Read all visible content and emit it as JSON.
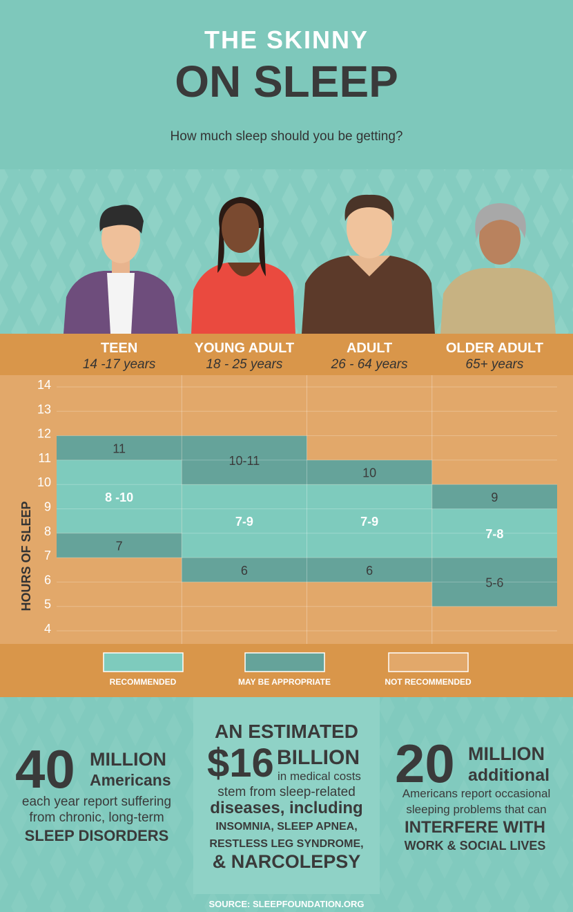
{
  "header": {
    "title_line1": "THE SKINNY",
    "title_line2": "ON SLEEP",
    "subtitle": "How much sleep should you be getting?"
  },
  "chart_data": {
    "type": "range-bands",
    "y_label": "HOURS OF SLEEP",
    "ylim": [
      4,
      14
    ],
    "yticks": [
      4,
      5,
      6,
      7,
      8,
      9,
      10,
      11,
      12,
      13,
      14
    ],
    "grid": true,
    "background_color": "#e2a86a",
    "legend": [
      {
        "name": "RECOMMENDED",
        "color": "#7ecbbd"
      },
      {
        "name": "MAY BE APPROPRIATE",
        "color": "#65a39a"
      },
      {
        "name": "NOT RECOMMENDED",
        "color": "#e2a86a"
      }
    ],
    "categories": [
      {
        "name": "TEEN",
        "ages": "14 -17 years",
        "segments": [
          {
            "label": "11",
            "low": 11,
            "high": 11,
            "color": "#65a39a"
          },
          {
            "label": "8 -10",
            "low": 8,
            "high": 10,
            "color": "#7ecbbd"
          },
          {
            "label": "7",
            "low": 7,
            "high": 7,
            "color": "#65a39a"
          }
        ]
      },
      {
        "name": "YOUNG ADULT",
        "ages": "18 - 25 years",
        "segments": [
          {
            "label": "10-11",
            "low": 10,
            "high": 11,
            "color": "#65a39a"
          },
          {
            "label": "7-9",
            "low": 7,
            "high": 9,
            "color": "#7ecbbd"
          },
          {
            "label": "6",
            "low": 6,
            "high": 6,
            "color": "#65a39a"
          }
        ]
      },
      {
        "name": "ADULT",
        "ages": "26 - 64 years",
        "segments": [
          {
            "label": "10",
            "low": 10,
            "high": 10,
            "color": "#65a39a"
          },
          {
            "label": "7-9",
            "low": 7,
            "high": 9,
            "color": "#7ecbbd"
          },
          {
            "label": "6",
            "low": 6,
            "high": 6,
            "color": "#65a39a"
          }
        ]
      },
      {
        "name": "OLDER ADULT",
        "ages": "65+ years",
        "segments": [
          {
            "label": "9",
            "low": 9,
            "high": 9,
            "color": "#65a39a"
          },
          {
            "label": "7-8",
            "low": 7,
            "high": 8,
            "color": "#7ecbbd"
          },
          {
            "label": "5-6",
            "low": 5,
            "high": 6,
            "color": "#65a39a"
          }
        ]
      }
    ]
  },
  "facts": [
    {
      "number": "40",
      "unit": "MILLION",
      "unit_sub": "Americans",
      "lines": [
        "each year report suffering",
        "from chronic, long-term"
      ],
      "emphasis": [
        "SLEEP DISORDERS"
      ]
    },
    {
      "lead": "AN ESTIMATED",
      "number": "$16",
      "unit": "BILLION",
      "unit_sub": "in medical costs",
      "lines": [
        "stem from sleep-related"
      ],
      "emphasis": [
        "diseases, including",
        "INSOMNIA, SLEEP APNEA,",
        "RESTLESS LEG SYNDROME,",
        "& NARCOLEPSY"
      ]
    },
    {
      "number": "20",
      "unit": "MILLION",
      "unit_sub": "additional",
      "lines": [
        "Americans report occasional",
        "sleeping problems that can"
      ],
      "emphasis": [
        "INTERFERE WITH",
        "WORK & SOCIAL LIVES"
      ]
    }
  ],
  "source": "SOURCE: SLEEPFOUNDATION.ORG"
}
